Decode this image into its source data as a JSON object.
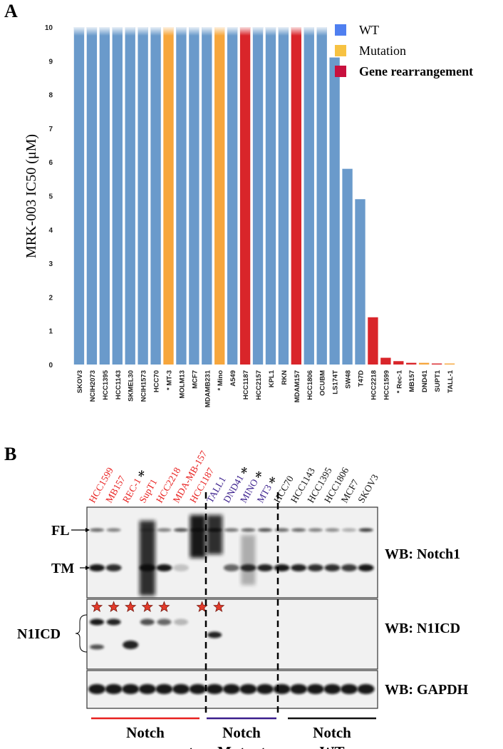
{
  "chart_data": {
    "type": "bar",
    "panel_label": "A",
    "y_label": "MRK-003 IC50 (μM)",
    "categories": [
      "SKOV3",
      "NCIH2073",
      "HCC1395",
      "HCC1143",
      "SKMEL30",
      "NCIH1573",
      "HCC70",
      "* MT-3",
      "MOLM13",
      "MCF7",
      "MDAMB231",
      "* Mino",
      "A549",
      "HCC1187",
      "HCC2157",
      "KPL1",
      "RKN",
      "MDAM157",
      "HCC1806",
      "OCUBM",
      "LS174T",
      "SW48",
      "T47D",
      "HCC2218",
      "HCC1599",
      "* Rec-1",
      "MB157",
      "DND41",
      "SUPT1",
      "TALL-1"
    ],
    "values": [
      10,
      10,
      10,
      10,
      10,
      10,
      10,
      10,
      10,
      10,
      10,
      10,
      10,
      10,
      10,
      10,
      10,
      10,
      10,
      10,
      9.1,
      5.8,
      4.9,
      1.4,
      0.2,
      0.1,
      0.05,
      0.05,
      0.03,
      0.03
    ],
    "colors": [
      "#6a9acb",
      "#6a9acb",
      "#6a9acb",
      "#6a9acb",
      "#6a9acb",
      "#6a9acb",
      "#6a9acb",
      "#f6a63c",
      "#6a9acb",
      "#6a9acb",
      "#6a9acb",
      "#f6a63c",
      "#6a9acb",
      "#d9252a",
      "#6a9acb",
      "#6a9acb",
      "#6a9acb",
      "#d9252a",
      "#6a9acb",
      "#6a9acb",
      "#6a9acb",
      "#6a9acb",
      "#6a9acb",
      "#d9252a",
      "#d9252a",
      "#d9252a",
      "#d9252a",
      "#f6a63c",
      "#d9252a",
      "#f6a63c"
    ],
    "ylim": [
      0,
      10
    ],
    "yticks": [
      0,
      1,
      2,
      3,
      4,
      5,
      6,
      7,
      8,
      9,
      10
    ],
    "legend": {
      "position": "top-right",
      "entries": [
        {
          "name": "WT",
          "color": "#4f7ff0"
        },
        {
          "name": "Mutation",
          "color": "#f7c242"
        },
        {
          "name": "Gene rearrangement",
          "color": "#c8103e"
        }
      ]
    }
  },
  "panel_b": {
    "label": "B",
    "lanes": [
      {
        "name": "HCC1599",
        "color": "#e8201f"
      },
      {
        "name": "MB157",
        "color": "#e8201f"
      },
      {
        "name": "REC-1",
        "color": "#e8201f",
        "asterisk": "*"
      },
      {
        "name": "SupT1",
        "color": "#e8201f"
      },
      {
        "name": "HCC2218",
        "color": "#e8201f"
      },
      {
        "name": "MDA-MB-157",
        "color": "#e8201f"
      },
      {
        "name": "HCC1187",
        "color": "#e8201f"
      },
      {
        "name": "TALL1",
        "color": "#3a1e8c"
      },
      {
        "name": "DND41",
        "color": "#3a1e8c",
        "asterisk": "*"
      },
      {
        "name": "MINO",
        "color": "#3a1e8c",
        "asterisk": "*"
      },
      {
        "name": "MT3",
        "color": "#3a1e8c",
        "asterisk": "*"
      },
      {
        "name": "HCC70",
        "color": "#111111"
      },
      {
        "name": "HCC1143",
        "color": "#111111"
      },
      {
        "name": "HCC1395",
        "color": "#111111"
      },
      {
        "name": "HCC1806",
        "color": "#111111"
      },
      {
        "name": "MCF7",
        "color": "#111111"
      },
      {
        "name": "SKOV3",
        "color": "#111111"
      }
    ],
    "band_labels": [
      "FL",
      "TM"
    ],
    "n1icd_label": "N1ICD",
    "blots": [
      "WB: Notch1",
      "WB: N1ICD",
      "WB: GAPDH"
    ],
    "groups": [
      {
        "lines": [
          "Notch",
          "rearrangement"
        ],
        "color": "#e8201f"
      },
      {
        "lines": [
          "Notch",
          "Mutant"
        ],
        "color": "#3a1e8c"
      },
      {
        "lines": [
          "Notch",
          "WT"
        ],
        "color": "#111111"
      }
    ]
  }
}
